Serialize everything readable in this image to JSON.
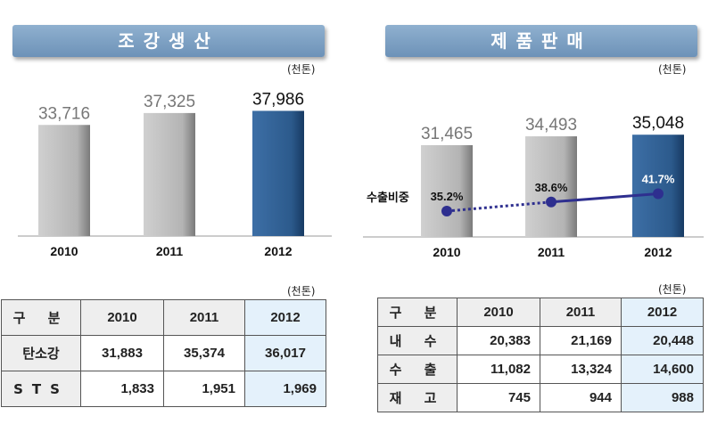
{
  "left": {
    "banner": "조강생산",
    "unit": "(천톤)",
    "table_unit": "(천톤)"
  },
  "right": {
    "banner": "제품판매",
    "unit": "(천톤)",
    "table_unit": "(천톤)",
    "line_label": "수출비중"
  },
  "chart_data": [
    {
      "type": "bar",
      "title": "조강생산",
      "categories": [
        "2010",
        "2011",
        "2012"
      ],
      "values": [
        33716,
        37325,
        37986
      ],
      "value_labels": [
        "33,716",
        "37,325",
        "37,986"
      ],
      "highlight_index": 2,
      "colors": {
        "normal": "#b4b4b4",
        "highlight": "#2c5a8c"
      },
      "ylim": [
        0,
        40000
      ]
    },
    {
      "type": "bar",
      "title": "제품판매",
      "categories": [
        "2010",
        "2011",
        "2012"
      ],
      "values": [
        31465,
        34493,
        35048
      ],
      "value_labels": [
        "31,465",
        "34,493",
        "35,048"
      ],
      "highlight_index": 2,
      "colors": {
        "normal": "#b4b4b4",
        "highlight": "#2c5a8c",
        "line": "#2e2f8f"
      },
      "ylim": [
        0,
        40000
      ],
      "line_series": {
        "name": "수출비중",
        "values": [
          35.2,
          38.6,
          41.7
        ],
        "value_labels": [
          "35.2%",
          "38.6%",
          "41.7%"
        ]
      }
    }
  ],
  "left_table": {
    "header": [
      "구 분",
      "2010",
      "2011",
      "2012"
    ],
    "rows": [
      [
        "탄소강",
        "31,883",
        "35,374",
        "36,017"
      ],
      [
        "STS",
        "1,833",
        "1,951",
        "1,969"
      ]
    ]
  },
  "right_table": {
    "header": [
      "구 분",
      "2010",
      "2011",
      "2012"
    ],
    "rows": [
      [
        "내 수",
        "20,383",
        "21,169",
        "20,448"
      ],
      [
        "수 출",
        "11,082",
        "13,324",
        "14,600"
      ],
      [
        "재 고",
        "745",
        "944",
        "988"
      ]
    ]
  }
}
